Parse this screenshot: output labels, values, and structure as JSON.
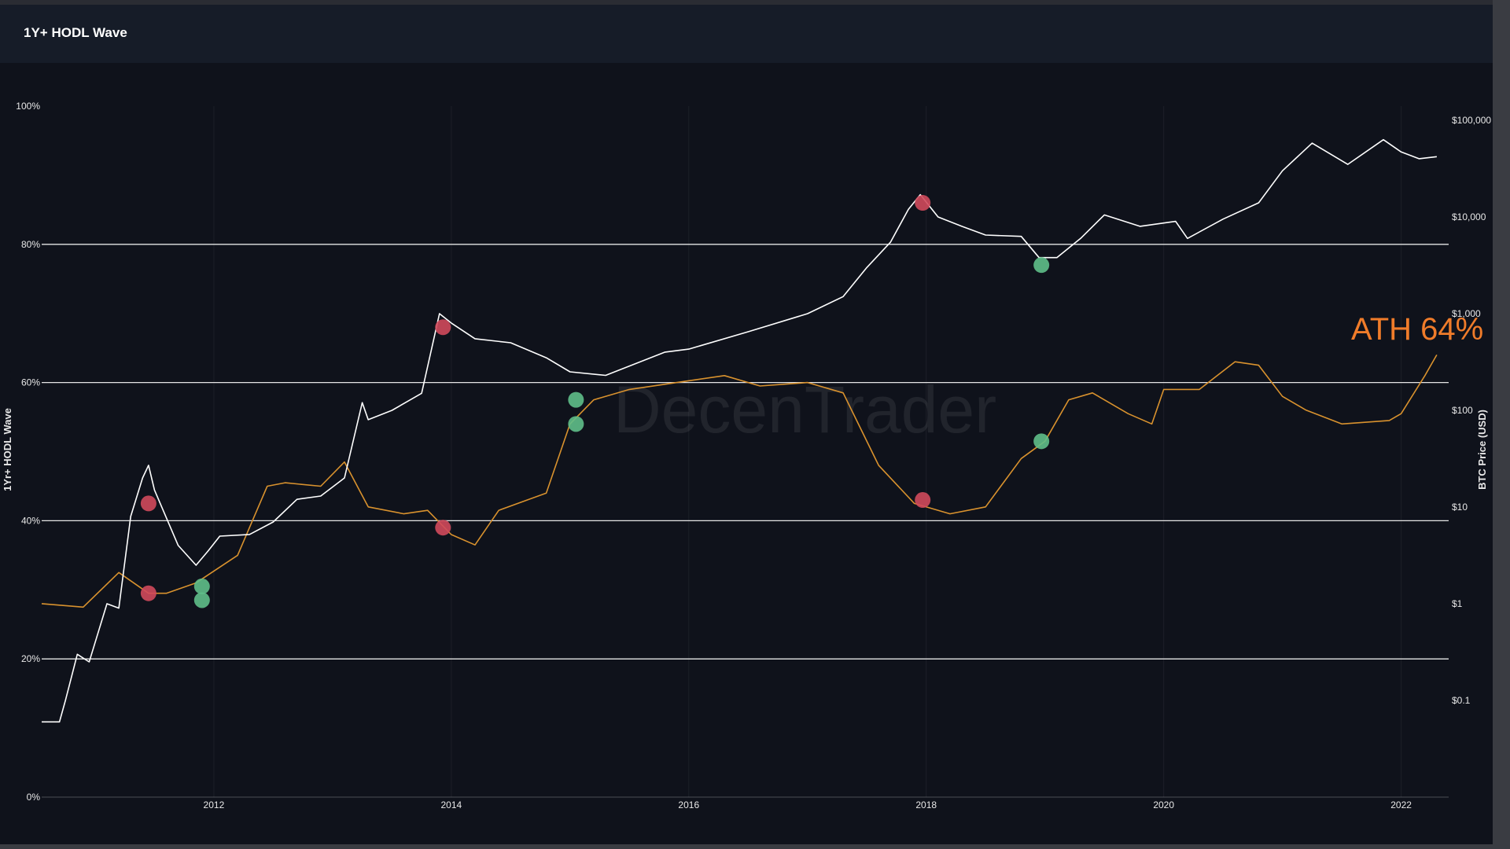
{
  "header": {
    "title": "1Y+ HODL Wave"
  },
  "chart_data": {
    "type": "line",
    "title": "",
    "watermark": "DecenTrader",
    "x_axis": {
      "range": [
        2010.55,
        2022.4
      ],
      "tick_values": [
        2012,
        2014,
        2016,
        2018,
        2020,
        2022
      ],
      "tick_labels": [
        "2012",
        "2014",
        "2016",
        "2018",
        "2020",
        "2022"
      ]
    },
    "y_left": {
      "label": "1Yr+ HODL Wave",
      "range": [
        0,
        100
      ],
      "tick_values": [
        0,
        20,
        40,
        60,
        80,
        100
      ],
      "tick_labels": [
        "0%",
        "20%",
        "40%",
        "60%",
        "80%",
        "100%"
      ],
      "gridlines_at": [
        20,
        40,
        60,
        80
      ]
    },
    "y_right": {
      "label": "BTC Price (USD)",
      "scale": "log",
      "range": [
        0.01,
        140000
      ],
      "tick_values": [
        0.1,
        1,
        10,
        100,
        1000,
        10000,
        100000
      ],
      "tick_labels": [
        "$0.1",
        "$1",
        "$10",
        "$100",
        "$1,000",
        "$10,000",
        "$100,000"
      ]
    },
    "series": [
      {
        "name": "",
        "axis": "left",
        "color": "#d9922e",
        "x": [
          2010.55,
          2010.9,
          2011.2,
          2011.45,
          2011.6,
          2011.85,
          2012.2,
          2012.45,
          2012.6,
          2012.9,
          2013.1,
          2013.3,
          2013.6,
          2013.8,
          2014.0,
          2014.2,
          2014.4,
          2014.8,
          2015.0,
          2015.2,
          2015.5,
          2015.9,
          2016.3,
          2016.6,
          2017.0,
          2017.3,
          2017.6,
          2017.9,
          2018.2,
          2018.5,
          2018.8,
          2019.0,
          2019.2,
          2019.4,
          2019.7,
          2019.9,
          2020.0,
          2020.3,
          2020.6,
          2020.8,
          2021.0,
          2021.2,
          2021.5,
          2021.9,
          2022.0,
          2022.2,
          2022.3
        ],
        "y": [
          28.0,
          27.5,
          32.5,
          29.5,
          29.5,
          31.0,
          35.0,
          45.0,
          45.5,
          45.0,
          48.5,
          42.0,
          41.0,
          41.5,
          38.0,
          36.5,
          41.5,
          44.0,
          54.0,
          57.5,
          59.0,
          60.0,
          61.0,
          59.5,
          60.0,
          58.5,
          48.0,
          42.5,
          41.0,
          42.0,
          49.0,
          51.5,
          57.5,
          58.5,
          55.5,
          54.0,
          59.0,
          59.0,
          63.0,
          62.5,
          58.0,
          56.0,
          54.0,
          54.5,
          55.5,
          61.0,
          64.0
        ]
      },
      {
        "name": "",
        "axis": "right",
        "color": "#ffffff",
        "x": [
          2010.55,
          2010.7,
          2010.75,
          2010.85,
          2010.95,
          2011.1,
          2011.2,
          2011.3,
          2011.4,
          2011.45,
          2011.5,
          2011.7,
          2011.85,
          2011.95,
          2012.05,
          2012.3,
          2012.5,
          2012.7,
          2012.9,
          2013.1,
          2013.25,
          2013.3,
          2013.5,
          2013.75,
          2013.9,
          2014.0,
          2014.2,
          2014.5,
          2014.8,
          2015.0,
          2015.3,
          2015.8,
          2016.0,
          2016.5,
          2017.0,
          2017.3,
          2017.5,
          2017.7,
          2017.85,
          2017.95,
          2018.1,
          2018.3,
          2018.5,
          2018.8,
          2018.95,
          2019.1,
          2019.3,
          2019.5,
          2019.8,
          2020.1,
          2020.2,
          2020.5,
          2020.8,
          2021.0,
          2021.25,
          2021.55,
          2021.85,
          2022.0,
          2022.15,
          2022.3
        ],
        "y": [
          0.06,
          0.06,
          0.1,
          0.3,
          0.25,
          1.0,
          0.9,
          8.0,
          20.0,
          27.0,
          15.0,
          4.0,
          2.5,
          3.5,
          5.0,
          5.2,
          7.0,
          12.0,
          13.0,
          20.0,
          120.0,
          80.0,
          100.0,
          150.0,
          1000.0,
          800.0,
          550.0,
          500.0,
          350.0,
          250.0,
          230.0,
          400.0,
          430.0,
          650.0,
          1000.0,
          1500.0,
          3000.0,
          5500.0,
          12000.0,
          17000.0,
          10000.0,
          8000.0,
          6500.0,
          6300.0,
          3800.0,
          3800.0,
          6000.0,
          10500.0,
          8000.0,
          9000.0,
          6000.0,
          9500.0,
          14000.0,
          30000.0,
          58000.0,
          35000.0,
          63000.0,
          47000.0,
          40000.0,
          42000.0
        ]
      }
    ],
    "markers": [
      {
        "x": 2011.45,
        "y": 42.5,
        "axis": "left",
        "type": "red"
      },
      {
        "x": 2011.45,
        "y": 29.5,
        "axis": "left",
        "type": "red"
      },
      {
        "x": 2011.9,
        "y": 30.5,
        "axis": "left",
        "type": "green"
      },
      {
        "x": 2011.9,
        "y": 28.5,
        "axis": "left",
        "type": "green"
      },
      {
        "x": 2013.93,
        "y": 68.0,
        "axis": "left",
        "type": "red"
      },
      {
        "x": 2013.93,
        "y": 39.0,
        "axis": "left",
        "type": "red"
      },
      {
        "x": 2015.05,
        "y": 57.5,
        "axis": "left",
        "type": "green"
      },
      {
        "x": 2015.05,
        "y": 54.0,
        "axis": "left",
        "type": "green"
      },
      {
        "x": 2017.97,
        "y": 86.0,
        "axis": "left",
        "type": "red"
      },
      {
        "x": 2017.97,
        "y": 43.0,
        "axis": "left",
        "type": "red"
      },
      {
        "x": 2018.97,
        "y": 77.0,
        "axis": "left",
        "type": "green"
      },
      {
        "x": 2018.97,
        "y": 51.5,
        "axis": "left",
        "type": "green"
      }
    ],
    "marker_colors": {
      "red": "#d04a5c",
      "green": "#5fbf8a"
    },
    "annotations": [
      {
        "text": "ATH 64%",
        "color": "#f07c2a"
      }
    ],
    "grid": true,
    "legend": "none"
  }
}
